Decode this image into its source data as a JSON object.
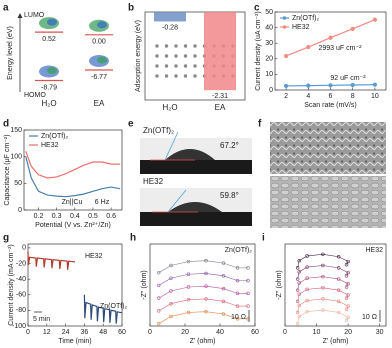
{
  "panel_labels": [
    "a",
    "b",
    "c",
    "d",
    "e",
    "f",
    "g",
    "h",
    "i"
  ],
  "chart_data": [
    {
      "type": "level",
      "y_label": "Energy level (eV)",
      "top_label": "LUMO",
      "bottom_label": "HOMO",
      "categories": [
        "H₂O",
        "EA"
      ],
      "ylim": [
        -11,
        4
      ],
      "series": [
        {
          "values": [
            0.52,
            0
          ],
          "value_labels": [
            "0.52",
            "0.00"
          ],
          "color": "#d9534f"
        },
        {
          "values": [
            -8.79,
            -6.77
          ],
          "color": "#d9534f"
        }
      ]
    },
    {
      "type": "bar",
      "y_label": "Adsorption energy (eV)",
      "categories": [
        "H₂O",
        "EA"
      ],
      "values": [
        -0.28,
        -2.31
      ],
      "colors": [
        "#6f8fc4",
        "#f2878a"
      ],
      "ylim": [
        -2.6,
        0
      ]
    },
    {
      "type": "line",
      "markers": "filled",
      "legend": "top-left",
      "x_label": "Scan rate (mV/s)",
      "y_label": "Current density (uA cm⁻²)",
      "x": [
        2,
        4,
        6,
        8,
        10
      ],
      "xlim": [
        1,
        11
      ],
      "xticks": [
        2,
        4,
        6,
        8,
        10
      ],
      "ylim": [
        0,
        50
      ],
      "yticks": [
        0,
        10,
        20,
        30,
        40,
        50
      ],
      "series": [
        {
          "name": "Zn(OTf)₂",
          "color": "#5b9bd5",
          "values": [
            2.6,
            2.8,
            3.0,
            3.2,
            3.4
          ]
        },
        {
          "name": "HE32",
          "color": "#f28b82",
          "values": [
            21.8,
            27.5,
            33.5,
            39.2,
            45.1
          ]
        }
      ],
      "annotations": [
        "2993 uF cm⁻²",
        "92 uF cm⁻²"
      ]
    },
    {
      "type": "line",
      "legend": "top-left",
      "x_label": "Potential (V vs. Zn²⁺/Zn)",
      "y_label": "Capacitance (μF cm⁻²)",
      "x": [
        0.13,
        0.16,
        0.2,
        0.25,
        0.3,
        0.35,
        0.4,
        0.45,
        0.5,
        0.55,
        0.6,
        0.65
      ],
      "xlim": [
        0.12,
        0.66
      ],
      "xticks": [
        0.2,
        0.3,
        0.4,
        0.5,
        0.6
      ],
      "ylim": [
        0,
        150
      ],
      "yticks": [
        0,
        50,
        100,
        150
      ],
      "series": [
        {
          "name": "Zn(OTf)₂",
          "color": "#4a7fa8",
          "values": [
            100,
            60,
            35,
            28,
            26,
            25,
            27,
            30,
            35,
            40,
            43,
            40
          ]
        },
        {
          "name": "HE32",
          "color": "#ef6f6f",
          "values": [
            110,
            82,
            66,
            60,
            62,
            68,
            76,
            84,
            90,
            90,
            86,
            86
          ]
        }
      ],
      "annotations": [
        "Zn||Cu",
        "6 Hz"
      ]
    },
    {
      "type": "line",
      "x_label": "Time (min)",
      "y_label": "Current density (mA cm⁻²)",
      "xlim": [
        0,
        60
      ],
      "xticks": [
        0,
        12,
        24,
        36,
        48,
        60
      ],
      "ylim": [
        -100,
        5
      ],
      "yticks": [
        0,
        -20,
        -40,
        -60,
        -80,
        -100
      ],
      "series": [
        {
          "name": "HE32",
          "color": "#b03a2e",
          "x": [
            0,
            0.3,
            1,
            5,
            5.3,
            6,
            10,
            10.3,
            11,
            15,
            15.3,
            16,
            20,
            20.3,
            21,
            25,
            25.3,
            26,
            30
          ],
          "values": [
            -5,
            -22,
            -12,
            -13,
            -24,
            -13,
            -14,
            -25,
            -14,
            -15,
            -26,
            -15,
            -16,
            -27,
            -16,
            -17,
            -28,
            -17,
            -18
          ]
        },
        {
          "name": "Zn(OTf)₂",
          "color": "#2c4a7a",
          "x": [
            36,
            36.3,
            37,
            40,
            40.3,
            41,
            44,
            44.3,
            45,
            48,
            48.3,
            49,
            52,
            52.3,
            53,
            56,
            56.3,
            57,
            60
          ],
          "values": [
            -60,
            -90,
            -70,
            -72,
            -92,
            -73,
            -75,
            -94,
            -76,
            -77,
            -95,
            -78,
            -79,
            -96,
            -80,
            -81,
            -97,
            -82,
            -83
          ]
        }
      ],
      "scale_label": "5 min"
    },
    {
      "type": "line",
      "markers": "open",
      "x_label": "Z' (ohm)",
      "y_label": "-Z'' (ohm)",
      "label": "Zn(OTf)₂",
      "scale_label": "10 Ω",
      "x": [
        5,
        12,
        22,
        32,
        42,
        50,
        56
      ],
      "xlim": [
        0,
        60
      ],
      "xticks": [
        0,
        20,
        40,
        60
      ],
      "ylim": [
        -3,
        100
      ],
      "series": [
        {
          "color": "#e0894a",
          "values": [
            0,
            9,
            14,
            15,
            12,
            6,
            6
          ]
        },
        {
          "color": "#d9657a",
          "values": [
            16,
            25,
            30,
            31,
            28,
            22,
            22
          ]
        },
        {
          "color": "#b8569a",
          "values": [
            32,
            41,
            46,
            47,
            44,
            38,
            38
          ]
        },
        {
          "color": "#8a5aa8",
          "values": [
            48,
            57,
            62,
            63,
            60,
            54,
            54
          ]
        },
        {
          "color": "#7a7a8a",
          "values": [
            64,
            73,
            78,
            79,
            76,
            70,
            70
          ]
        }
      ]
    },
    {
      "type": "line",
      "markers": "open",
      "x_label": "Z' (ohm)",
      "y_label": "-Z'' (ohm)",
      "label": "HE32",
      "scale_label": "10 Ω",
      "x": [
        4,
        4.5,
        7,
        12,
        17,
        20,
        19.5
      ],
      "xlim": [
        0,
        32
      ],
      "xticks": [
        0,
        10,
        20,
        30
      ],
      "ylim": [
        -3,
        100
      ],
      "series": [
        {
          "color": "#f2b4a0",
          "values": [
            0,
            9,
            15,
            17,
            14,
            8,
            4
          ]
        },
        {
          "color": "#e8877a",
          "values": [
            14,
            23,
            29,
            31,
            28,
            22,
            18
          ]
        },
        {
          "color": "#d0607a",
          "values": [
            28,
            37,
            43,
            45,
            42,
            36,
            32
          ]
        },
        {
          "color": "#a84a7a",
          "values": [
            42,
            51,
            57,
            59,
            56,
            50,
            46
          ]
        },
        {
          "color": "#7a3a6a",
          "values": [
            56,
            65,
            71,
            73,
            70,
            64,
            60
          ]
        },
        {
          "color": "#4a2a4a",
          "values": [
            70,
            79,
            85,
            87,
            84,
            78,
            74
          ]
        }
      ]
    }
  ],
  "panel_e": {
    "top_label": "Zn(OTf)₂",
    "top_angle": "67.2°",
    "bottom_label": "HE32",
    "bottom_angle": "59.8°"
  }
}
